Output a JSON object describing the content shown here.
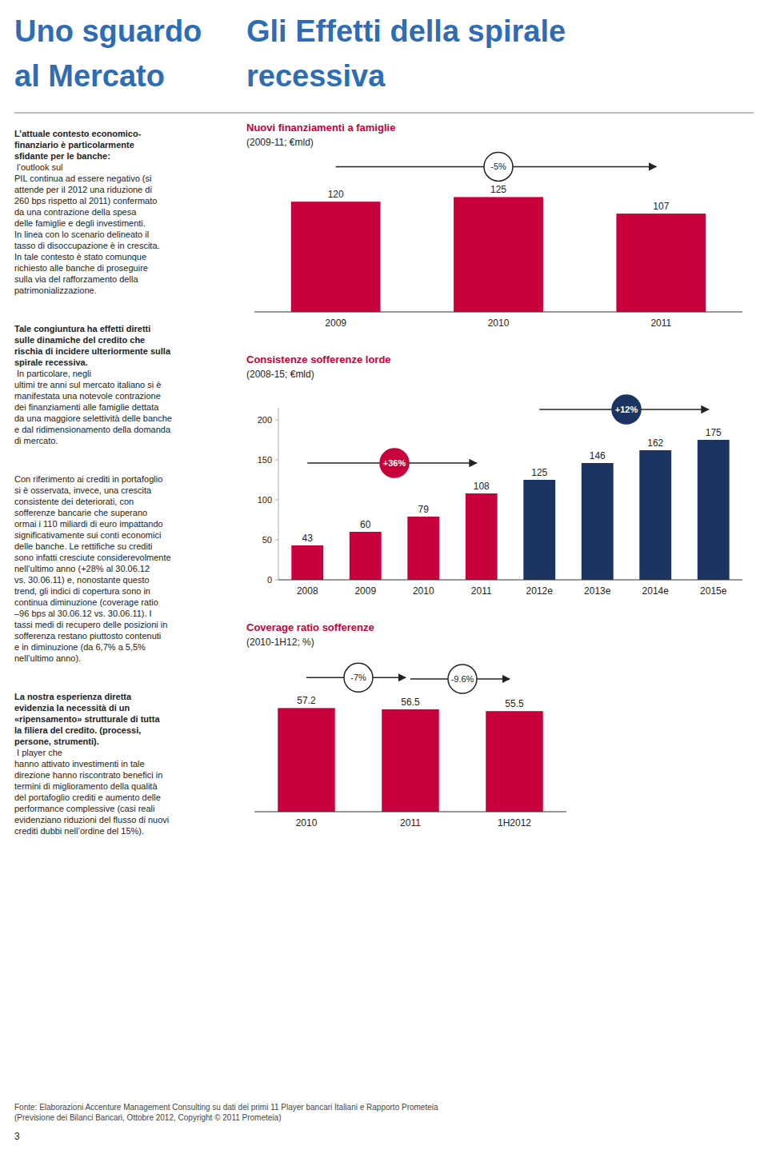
{
  "page": {
    "heading": [
      "Uno sguardo",
      "al Mercato"
    ],
    "title": [
      "Gli Effetti della spirale",
      "recessiva"
    ],
    "paragraphs": [
      {
        "lead": [
          "L’attuale contesto economico-",
          "finanziario è particolarmente",
          "sfidante per le banche:"
        ],
        "text": [
          " l’outlook sul",
          "PIL continua ad essere negativo (si",
          "attende per il 2012 una riduzione di",
          "260 bps rispetto al 2011) confermato",
          "da una contrazione della spesa",
          "delle famiglie e degli investimenti.",
          "In linea con lo scenario delineato il",
          "tasso di disoccupazione è in crescita.",
          "In tale contesto è stato comunque",
          "richiesto alle banche di proseguire",
          "sulla via del rafforzamento della",
          "patrimonializzazione."
        ]
      },
      {
        "lead": [
          "Tale congiuntura ha effetti diretti",
          "sulle dinamiche del credito che",
          "rischia di incidere ulteriormente sulla",
          "spirale recessiva."
        ],
        "text": [
          " In particolare, negli",
          "ultimi tre anni sul mercato italiano si è",
          "manifestata una notevole contrazione",
          "dei finanziamenti alle famiglie dettata",
          "da una maggiore selettività delle banche",
          "e dal ridimensionamento della domanda",
          "di mercato."
        ]
      },
      {
        "text": [
          "Con riferimento ai crediti in portafoglio",
          "si è osservata, invece, una crescita",
          "consistente dei deteriorati, con",
          "sofferenze bancarie che superano",
          "ormai i 110 miliardi di euro impattando",
          "significativamente sui conti economici",
          "delle banche. Le rettifiche su crediti",
          "sono infatti cresciute considerevolmente",
          "nell’ultimo anno (+28% al 30.06.12",
          "vs. 30.06.11) e, nonostante questo",
          "trend, gli indici di copertura sono in",
          "continua diminuzione (coverage ratio",
          "–96 bps al 30.06.12 vs. 30.06.11). I",
          "tassi medi di recupero delle posizioni in",
          "sofferenza restano piuttosto contenuti",
          "e in diminuzione (da 6,7% a 5,5%",
          "nell’ultimo anno)."
        ]
      },
      {
        "lead": [
          "La nostra esperienza diretta",
          "evidenzia la necessità di un",
          "«ripensamento» strutturale di tutta",
          "la filiera del credito. (processi,",
          "persone, strumenti)."
        ],
        "text": [
          " I player che",
          "hanno attivato investimenti in tale",
          "direzione hanno riscontrato benefici in",
          "termini di miglioramento della qualità",
          "del portafoglio crediti e aumento delle",
          "performance complessive (casi reali",
          "evidenziano riduzioni del flusso di nuovi",
          "crediti dubbi nell’ordine del 15%)."
        ]
      }
    ],
    "footer": "Fonte: Elaborazioni Accenture Management Consulting su dati dei primi 11 Player bancari Italiani e Rapporto Prometeia\n(Previsione dei Bilanci Bancari, Ottobre 2012, Copyright © 2011 Prometeia)",
    "page_number": "3"
  },
  "chart_data": [
    {
      "type": "bar",
      "title": "Nuovi finanziamenti a famiglie",
      "subtitle": "(2009-11; €mld)",
      "categories": [
        "2009",
        "2010",
        "2011"
      ],
      "values": [
        120,
        125,
        107
      ],
      "color": "#C8003C",
      "ylim": [
        0,
        148
      ],
      "grid": false,
      "data_labels": true,
      "tick_labels": "x",
      "annotations": [
        {
          "text": "-5%",
          "from": "2009",
          "to": "2011"
        }
      ]
    },
    {
      "type": "bar",
      "title": "Consistenze sofferenze lorde",
      "subtitle": "(2008-15; €mld)",
      "categories": [
        "2008",
        "2009",
        "2010",
        "2011",
        "2012e",
        "2013e",
        "2014e",
        "2015e"
      ],
      "values": [
        43,
        60,
        79,
        108,
        125,
        146,
        162,
        175
      ],
      "colors": [
        "#C8003C",
        "#C8003C",
        "#C8003C",
        "#C8003C",
        "#1C3461",
        "#1C3461",
        "#1C3461",
        "#1C3461"
      ],
      "ylim": [
        0,
        215
      ],
      "yticks": [
        0,
        50,
        100,
        150,
        200
      ],
      "grid": false,
      "data_labels": true,
      "annotations": [
        {
          "text": "+36%",
          "from": "2008",
          "to": "2011",
          "color": "#C8003C"
        },
        {
          "text": "+12%",
          "from": "2012e",
          "to": "2015e",
          "color": "#1C3461"
        }
      ]
    },
    {
      "type": "bar",
      "title": "Coverage ratio sofferenze",
      "subtitle": "(2010-1H12; %)",
      "categories": [
        "2010",
        "2011",
        "1H2012"
      ],
      "values": [
        57.2,
        56.5,
        55.5
      ],
      "color": "#C8003C",
      "ylim": [
        0,
        75
      ],
      "grid": false,
      "data_labels": true,
      "tick_labels": "x",
      "annotations": [
        {
          "text": "-7%",
          "from": "2010",
          "to": "2011"
        },
        {
          "text": "-9.6%",
          "from": "2011",
          "to": "1H2012"
        }
      ]
    }
  ]
}
